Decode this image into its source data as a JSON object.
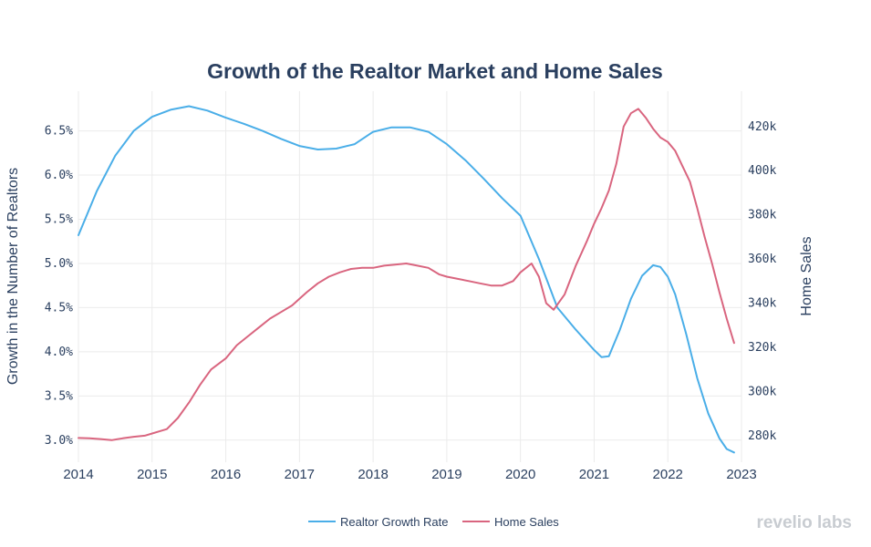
{
  "chart_data": {
    "type": "line",
    "title": "Growth of the Realtor Market and Home Sales",
    "ylabel_left": "Growth in the Number of Realtors",
    "ylabel_right": "Home Sales",
    "xlim": [
      2014,
      2023
    ],
    "ylim_left": [
      2.75,
      6.95
    ],
    "ylim_right": [
      268000,
      436000
    ],
    "x_ticks": [
      2014,
      2015,
      2016,
      2017,
      2018,
      2019,
      2020,
      2021,
      2022,
      2023
    ],
    "x_tick_labels": [
      "2014",
      "2015",
      "2016",
      "2017",
      "2018",
      "2019",
      "2020",
      "2021",
      "2022",
      "2023"
    ],
    "y_left_ticks": [
      3.0,
      3.5,
      4.0,
      4.5,
      5.0,
      5.5,
      6.0,
      6.5
    ],
    "y_left_tick_labels": [
      "3.0%",
      "3.5%",
      "4.0%",
      "4.5%",
      "5.0%",
      "5.5%",
      "6.0%",
      "6.5%"
    ],
    "y_right_ticks": [
      280000,
      300000,
      320000,
      340000,
      360000,
      380000,
      400000,
      420000
    ],
    "y_right_tick_labels": [
      "280k",
      "300k",
      "320k",
      "340k",
      "360k",
      "380k",
      "400k",
      "420k"
    ],
    "legend_position": "bottom-center",
    "series": [
      {
        "name": "Realtor Growth Rate",
        "axis": "left",
        "color": "#4aaee8",
        "x": [
          2014.0,
          2014.25,
          2014.5,
          2014.75,
          2015.0,
          2015.25,
          2015.5,
          2015.75,
          2016.0,
          2016.25,
          2016.5,
          2016.75,
          2017.0,
          2017.25,
          2017.5,
          2017.75,
          2018.0,
          2018.25,
          2018.5,
          2018.75,
          2019.0,
          2019.25,
          2019.5,
          2019.75,
          2020.0,
          2020.25,
          2020.5,
          2020.75,
          2021.0,
          2021.1,
          2021.2,
          2021.35,
          2021.5,
          2021.65,
          2021.8,
          2021.9,
          2022.0,
          2022.1,
          2022.25,
          2022.4,
          2022.55,
          2022.7,
          2022.8,
          2022.9
        ],
        "y": [
          5.32,
          5.82,
          6.22,
          6.5,
          6.66,
          6.74,
          6.78,
          6.73,
          6.65,
          6.58,
          6.5,
          6.41,
          6.33,
          6.29,
          6.3,
          6.35,
          6.49,
          6.54,
          6.54,
          6.49,
          6.35,
          6.17,
          5.96,
          5.74,
          5.54,
          5.05,
          4.5,
          4.25,
          4.02,
          3.94,
          3.95,
          4.25,
          4.6,
          4.86,
          4.98,
          4.96,
          4.85,
          4.65,
          4.2,
          3.7,
          3.3,
          3.02,
          2.9,
          2.86
        ]
      },
      {
        "name": "Home Sales",
        "axis": "right",
        "color": "#d9657f",
        "x": [
          2014.0,
          2014.15,
          2014.3,
          2014.45,
          2014.6,
          2014.75,
          2014.9,
          2015.0,
          2015.1,
          2015.2,
          2015.35,
          2015.5,
          2015.65,
          2015.8,
          2016.0,
          2016.15,
          2016.3,
          2016.45,
          2016.6,
          2016.75,
          2016.9,
          2017.0,
          2017.1,
          2017.25,
          2017.4,
          2017.55,
          2017.7,
          2017.85,
          2018.0,
          2018.15,
          2018.3,
          2018.45,
          2018.6,
          2018.75,
          2018.9,
          2019.0,
          2019.15,
          2019.3,
          2019.45,
          2019.6,
          2019.75,
          2019.9,
          2020.0,
          2020.15,
          2020.25,
          2020.35,
          2020.45,
          2020.6,
          2020.75,
          2020.9,
          2021.0,
          2021.1,
          2021.2,
          2021.3,
          2021.4,
          2021.5,
          2021.6,
          2021.7,
          2021.8,
          2021.9,
          2022.0,
          2022.1,
          2022.2,
          2022.3,
          2022.4,
          2022.5,
          2022.6,
          2022.7,
          2022.8,
          2022.9
        ],
        "y": [
          279000,
          278800,
          278500,
          278000,
          278800,
          279500,
          280000,
          281000,
          282000,
          283000,
          288000,
          295000,
          303000,
          310000,
          315000,
          321000,
          325000,
          329000,
          333000,
          336000,
          339000,
          342000,
          345000,
          349000,
          352000,
          354000,
          355500,
          356000,
          356000,
          357000,
          357500,
          358000,
          357000,
          356000,
          353000,
          352000,
          351000,
          350000,
          349000,
          348000,
          348000,
          350000,
          354000,
          358000,
          352000,
          340000,
          337000,
          344000,
          357000,
          368000,
          376000,
          383000,
          391000,
          403000,
          420000,
          426000,
          428000,
          424000,
          419000,
          415000,
          413000,
          409000,
          402000,
          395000,
          383000,
          370000,
          358000,
          345000,
          333000,
          322000
        ]
      }
    ]
  },
  "branding": {
    "logo_text": "revelio labs"
  }
}
